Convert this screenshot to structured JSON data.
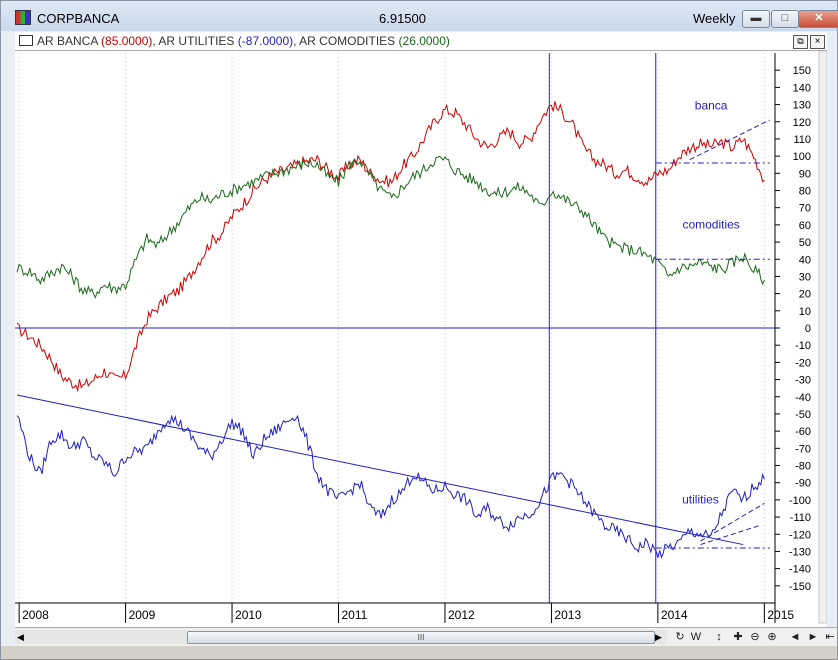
{
  "window": {
    "title": "CORPBANCA",
    "price": "6.91500",
    "period": "Weekly"
  },
  "legend": {
    "items": [
      {
        "name": "AR BANCA",
        "value": "(85.0000)",
        "color": "#d40000"
      },
      {
        "name": "AR UTILITIES",
        "value": "(-87.0000)",
        "color": "#1f1fc8"
      },
      {
        "name": "AR COMODITIES",
        "value": "(26.0000)",
        "color": "#1a6a1a"
      }
    ]
  },
  "chart_data": {
    "type": "line",
    "title": "CORPBANCA",
    "xlabel": "",
    "ylabel": "",
    "ylim": [
      -160,
      160
    ],
    "y_ticks": [
      150,
      140,
      130,
      120,
      110,
      100,
      90,
      80,
      70,
      60,
      50,
      40,
      30,
      20,
      10,
      0,
      -10,
      -20,
      -30,
      -40,
      -50,
      -60,
      -70,
      -80,
      -90,
      -100,
      -110,
      -120,
      -130,
      -140,
      -150
    ],
    "x_tick_labels": [
      "2008",
      "2009",
      "2010",
      "2011",
      "2012",
      "2013",
      "2014",
      "2015"
    ],
    "x_tick_positions": [
      2008,
      2009,
      2010,
      2011,
      2012,
      2013,
      2014,
      2015
    ],
    "xlim": [
      2007.98,
      2015.1
    ],
    "grid": true,
    "annotations": [
      {
        "text": "banca",
        "x": 2014.5,
        "y": 127,
        "color": "#1f1fc8"
      },
      {
        "text": "comodities",
        "x": 2014.5,
        "y": 58,
        "color": "#1f1fc8"
      },
      {
        "text": "utilities",
        "x": 2014.4,
        "y": -102,
        "color": "#1f1fc8"
      }
    ],
    "reference_lines": {
      "horizontal": [
        {
          "y": 0
        }
      ],
      "vertical": [
        {
          "x": 2012.98
        },
        {
          "x": 2013.98
        }
      ]
    },
    "trendlines": [
      {
        "series": "AR UTILITIES",
        "x": [
          2007.98,
          2014.8
        ],
        "y": [
          -39,
          -126
        ],
        "style": "solid"
      },
      {
        "series": "AR BANCA",
        "x": [
          2013.98,
          2015.05
        ],
        "y": [
          96,
          96
        ],
        "style": "dashdot"
      },
      {
        "series": "AR BANCA",
        "x": [
          2014.3,
          2015.05
        ],
        "y": [
          98,
          121
        ],
        "style": "dashed"
      },
      {
        "series": "AR COMODITIES",
        "x": [
          2013.98,
          2015.05
        ],
        "y": [
          40,
          40
        ],
        "style": "dashdot"
      },
      {
        "series": "AR UTILITIES",
        "x": [
          2013.98,
          2015.05
        ],
        "y": [
          -128,
          -128
        ],
        "style": "dashdot"
      },
      {
        "series": "AR UTILITIES",
        "x": [
          2014.4,
          2015.0
        ],
        "y": [
          -124,
          -102
        ],
        "style": "dashed"
      },
      {
        "series": "AR UTILITIES",
        "x": [
          2014.4,
          2014.95
        ],
        "y": [
          -126,
          -115
        ],
        "style": "dashed"
      }
    ],
    "series": [
      {
        "name": "AR BANCA",
        "color": "#d40000",
        "x": [
          2007.98,
          2008.1,
          2008.2,
          2008.3,
          2008.4,
          2008.5,
          2008.6,
          2008.7,
          2008.8,
          2008.9,
          2009.0,
          2009.1,
          2009.2,
          2009.3,
          2009.4,
          2009.5,
          2009.6,
          2009.7,
          2009.8,
          2009.9,
          2010.0,
          2010.1,
          2010.2,
          2010.3,
          2010.4,
          2010.5,
          2010.6,
          2010.7,
          2010.8,
          2010.9,
          2011.0,
          2011.1,
          2011.2,
          2011.3,
          2011.4,
          2011.5,
          2011.6,
          2011.7,
          2011.8,
          2011.9,
          2012.0,
          2012.1,
          2012.2,
          2012.3,
          2012.4,
          2012.5,
          2012.6,
          2012.7,
          2012.8,
          2012.9,
          2013.0,
          2013.1,
          2013.2,
          2013.3,
          2013.4,
          2013.5,
          2013.6,
          2013.7,
          2013.8,
          2013.9,
          2014.0,
          2014.1,
          2014.2,
          2014.3,
          2014.4,
          2014.5,
          2014.6,
          2014.7,
          2014.8,
          2014.9,
          2015.0
        ],
        "y": [
          0,
          -5,
          -10,
          -18,
          -28,
          -32,
          -34,
          -30,
          -25,
          -30,
          -28,
          -10,
          5,
          12,
          18,
          22,
          30,
          40,
          50,
          55,
          65,
          72,
          80,
          86,
          90,
          92,
          95,
          97,
          98,
          92,
          88,
          95,
          98,
          90,
          86,
          85,
          94,
          100,
          110,
          120,
          127,
          125,
          118,
          110,
          105,
          110,
          115,
          108,
          110,
          122,
          130,
          126,
          118,
          105,
          98,
          95,
          90,
          92,
          88,
          85,
          90,
          92,
          100,
          105,
          107,
          106,
          108,
          105,
          110,
          100,
          86
        ]
      },
      {
        "name": "AR COMODITIES",
        "color": "#1a6a1a",
        "x": [
          2007.98,
          2008.1,
          2008.2,
          2008.3,
          2008.4,
          2008.5,
          2008.6,
          2008.7,
          2008.8,
          2008.9,
          2009.0,
          2009.1,
          2009.2,
          2009.3,
          2009.4,
          2009.5,
          2009.6,
          2009.7,
          2009.8,
          2009.9,
          2010.0,
          2010.1,
          2010.2,
          2010.3,
          2010.4,
          2010.5,
          2010.6,
          2010.7,
          2010.8,
          2010.9,
          2011.0,
          2011.1,
          2011.2,
          2011.3,
          2011.4,
          2011.5,
          2011.6,
          2011.7,
          2011.8,
          2011.9,
          2012.0,
          2012.1,
          2012.2,
          2012.3,
          2012.4,
          2012.5,
          2012.6,
          2012.7,
          2012.8,
          2012.9,
          2013.0,
          2013.1,
          2013.2,
          2013.3,
          2013.4,
          2013.5,
          2013.6,
          2013.7,
          2013.8,
          2013.9,
          2014.0,
          2014.1,
          2014.2,
          2014.3,
          2014.4,
          2014.5,
          2014.6,
          2014.7,
          2014.8,
          2014.9,
          2015.0
        ],
        "y": [
          35,
          33,
          28,
          32,
          36,
          30,
          22,
          20,
          25,
          23,
          25,
          40,
          52,
          48,
          55,
          62,
          70,
          76,
          74,
          78,
          80,
          83,
          85,
          88,
          90,
          92,
          94,
          96,
          95,
          88,
          85,
          95,
          98,
          88,
          80,
          75,
          82,
          88,
          92,
          98,
          98,
          92,
          88,
          85,
          80,
          78,
          80,
          82,
          78,
          70,
          80,
          76,
          72,
          68,
          60,
          52,
          48,
          46,
          45,
          42,
          38,
          30,
          35,
          36,
          38,
          36,
          34,
          38,
          42,
          34,
          28
        ]
      },
      {
        "name": "AR UTILITIES",
        "color": "#1f1fc8",
        "x": [
          2007.98,
          2008.1,
          2008.2,
          2008.3,
          2008.4,
          2008.5,
          2008.6,
          2008.7,
          2008.8,
          2008.9,
          2009.0,
          2009.1,
          2009.2,
          2009.3,
          2009.4,
          2009.5,
          2009.6,
          2009.7,
          2009.8,
          2009.9,
          2010.0,
          2010.1,
          2010.2,
          2010.3,
          2010.4,
          2010.5,
          2010.6,
          2010.7,
          2010.8,
          2010.9,
          2011.0,
          2011.1,
          2011.2,
          2011.3,
          2011.4,
          2011.5,
          2011.6,
          2011.7,
          2011.8,
          2011.9,
          2012.0,
          2012.1,
          2012.2,
          2012.3,
          2012.4,
          2012.5,
          2012.6,
          2012.7,
          2012.8,
          2012.9,
          2013.0,
          2013.1,
          2013.2,
          2013.3,
          2013.4,
          2013.5,
          2013.6,
          2013.7,
          2013.8,
          2013.9,
          2014.0,
          2014.1,
          2014.2,
          2014.3,
          2014.4,
          2014.5,
          2014.6,
          2014.7,
          2014.8,
          2014.9,
          2015.0
        ],
        "y": [
          -50,
          -75,
          -85,
          -65,
          -62,
          -70,
          -65,
          -75,
          -78,
          -85,
          -75,
          -72,
          -70,
          -60,
          -52,
          -55,
          -62,
          -70,
          -75,
          -65,
          -55,
          -60,
          -75,
          -65,
          -60,
          -55,
          -50,
          -65,
          -85,
          -95,
          -100,
          -95,
          -90,
          -105,
          -110,
          -100,
          -95,
          -85,
          -90,
          -95,
          -92,
          -97,
          -100,
          -110,
          -105,
          -112,
          -115,
          -110,
          -108,
          -100,
          -88,
          -85,
          -92,
          -100,
          -108,
          -115,
          -118,
          -122,
          -128,
          -125,
          -132,
          -128,
          -125,
          -118,
          -120,
          -122,
          -108,
          -95,
          -100,
          -92,
          -88
        ]
      }
    ]
  },
  "toolbar": {
    "scroll_thumb_label": "III",
    "tools": [
      {
        "name": "refresh-icon",
        "label": "↻"
      },
      {
        "name": "w-icon",
        "label": "W"
      },
      {
        "name": "move-vertical-icon",
        "label": "↕"
      },
      {
        "name": "move-icon",
        "label": "✚"
      },
      {
        "name": "zoom-out-icon",
        "label": "⊖"
      },
      {
        "name": "zoom-in-icon",
        "label": "⊕"
      },
      {
        "name": "prev-icon",
        "label": "◄"
      },
      {
        "name": "next-icon",
        "label": "►"
      },
      {
        "name": "first-icon",
        "label": "⇤"
      }
    ]
  }
}
